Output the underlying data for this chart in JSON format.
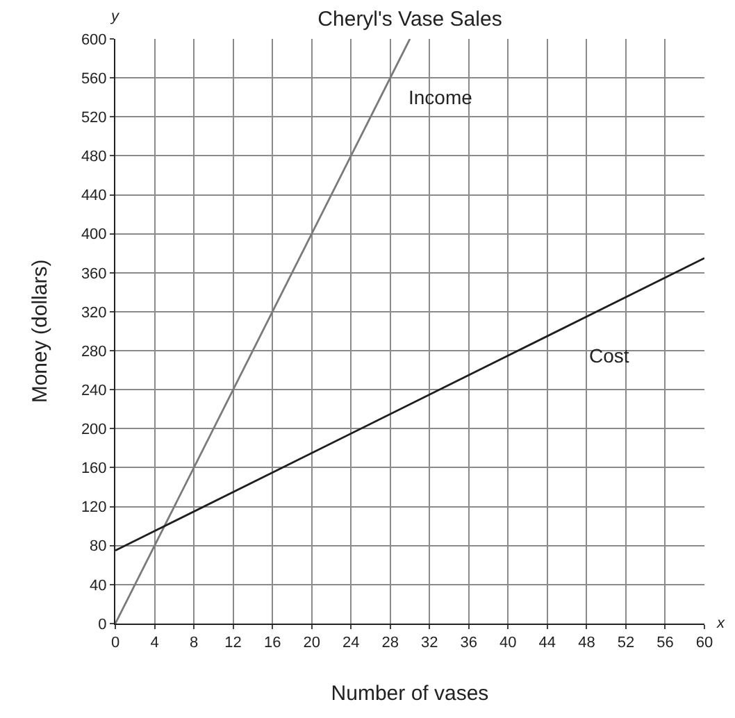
{
  "chart_data": {
    "type": "line",
    "title": "Cheryl's Vase Sales",
    "xlabel": "Number of vases",
    "ylabel": "Money (dollars)",
    "series": [
      {
        "name": "Income",
        "color": "#7a7a7a",
        "x": [
          0,
          30
        ],
        "values": [
          0,
          600
        ]
      },
      {
        "name": "Cost",
        "color": "#1e1e1e",
        "x": [
          0,
          60
        ],
        "values": [
          75,
          375
        ]
      }
    ],
    "xlim": [
      0,
      60
    ],
    "xticks": [
      0,
      4,
      8,
      12,
      16,
      20,
      24,
      28,
      32,
      36,
      40,
      44,
      48,
      52,
      56,
      60
    ],
    "ylim": [
      0,
      600
    ],
    "yticks": [
      0,
      40,
      80,
      120,
      160,
      200,
      240,
      280,
      320,
      360,
      400,
      440,
      480,
      520,
      560,
      600
    ],
    "grid": true,
    "legend": false,
    "line_style": "solid",
    "annotations": [
      "x",
      "y"
    ]
  }
}
